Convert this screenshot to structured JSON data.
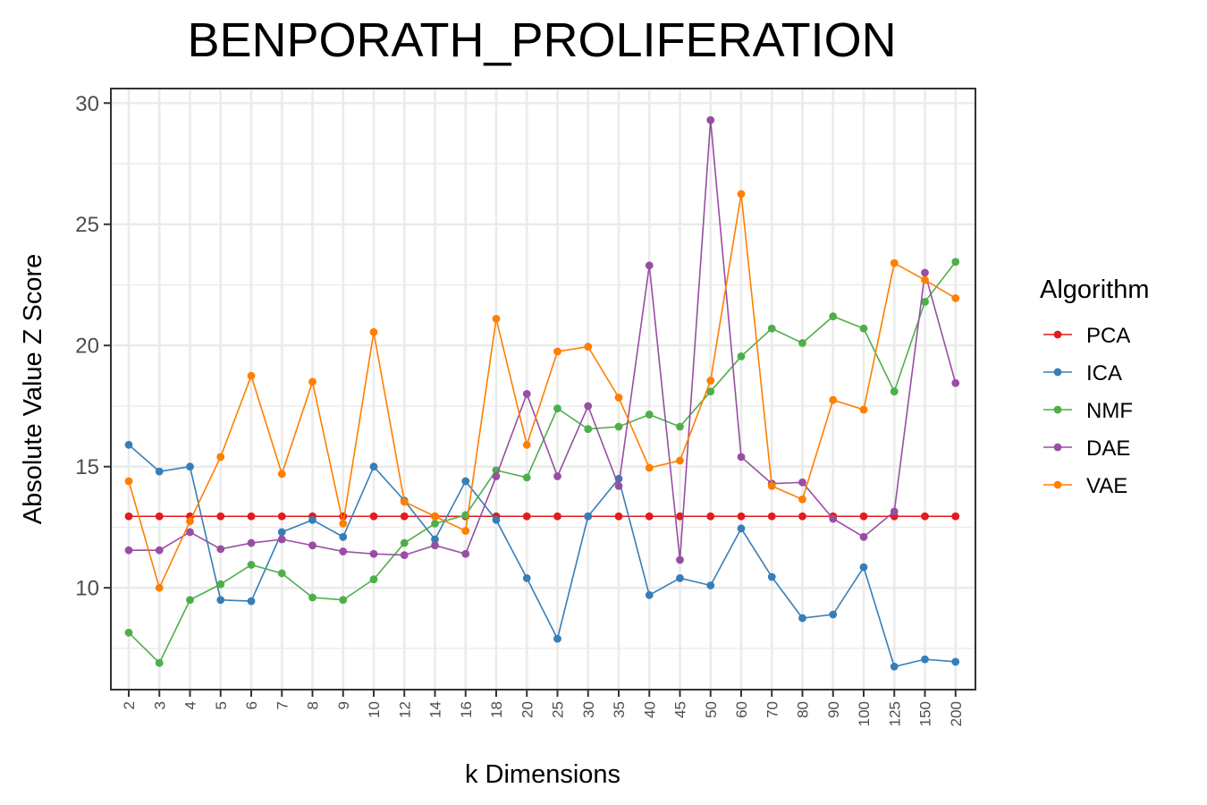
{
  "chart_data": {
    "type": "line",
    "title": "BENPORATH_PROLIFERATION",
    "xlabel": "k Dimensions",
    "ylabel": "Absolute Value Z Score",
    "categories": [
      "2",
      "3",
      "4",
      "5",
      "6",
      "7",
      "8",
      "9",
      "10",
      "12",
      "14",
      "16",
      "18",
      "20",
      "25",
      "30",
      "35",
      "40",
      "45",
      "50",
      "60",
      "70",
      "80",
      "90",
      "100",
      "125",
      "150",
      "200"
    ],
    "ylim": [
      5.8,
      30.6
    ],
    "yticks": [
      10,
      15,
      20,
      25,
      30
    ],
    "grid": true,
    "legend": {
      "title": "Algorithm",
      "position": "right"
    },
    "series": [
      {
        "name": "PCA",
        "color": "#e41a1c",
        "values": [
          12.95,
          12.95,
          12.95,
          12.95,
          12.95,
          12.95,
          12.95,
          12.95,
          12.95,
          12.95,
          12.95,
          12.95,
          12.95,
          12.95,
          12.95,
          12.95,
          12.95,
          12.95,
          12.95,
          12.95,
          12.95,
          12.95,
          12.95,
          12.95,
          12.95,
          12.95,
          12.95,
          12.95
        ]
      },
      {
        "name": "ICA",
        "color": "#377eb8",
        "values": [
          15.9,
          14.8,
          15.0,
          9.5,
          9.45,
          12.3,
          12.8,
          12.1,
          15.0,
          13.6,
          12.0,
          14.4,
          12.8,
          10.4,
          7.9,
          12.95,
          14.5,
          9.7,
          10.4,
          10.1,
          12.45,
          10.45,
          8.75,
          8.9,
          10.85,
          6.75,
          7.05,
          6.95
        ]
      },
      {
        "name": "NMF",
        "color": "#4daf4a",
        "values": [
          8.15,
          6.9,
          9.5,
          10.15,
          10.95,
          10.6,
          9.6,
          9.5,
          10.35,
          11.85,
          12.65,
          13.0,
          14.85,
          14.55,
          17.4,
          16.55,
          16.65,
          17.15,
          16.65,
          18.1,
          19.55,
          20.7,
          20.1,
          21.2,
          20.7,
          18.1,
          21.8,
          23.45
        ]
      },
      {
        "name": "DAE",
        "color": "#984ea3",
        "values": [
          11.55,
          11.55,
          12.3,
          11.6,
          11.85,
          12.0,
          11.75,
          11.5,
          11.4,
          11.35,
          11.75,
          11.4,
          14.6,
          18.0,
          14.6,
          17.5,
          14.2,
          23.3,
          11.15,
          29.3,
          15.4,
          14.3,
          14.35,
          12.85,
          12.1,
          13.15,
          23.0,
          18.45
        ]
      },
      {
        "name": "VAE",
        "color": "#ff7f00",
        "values": [
          14.4,
          10.0,
          12.75,
          15.4,
          18.75,
          14.7,
          18.5,
          12.65,
          20.55,
          13.55,
          12.95,
          12.35,
          21.1,
          15.9,
          19.75,
          19.95,
          17.85,
          14.95,
          15.25,
          18.55,
          26.25,
          14.2,
          13.65,
          17.75,
          17.35,
          23.4,
          22.7,
          21.95
        ]
      }
    ]
  }
}
